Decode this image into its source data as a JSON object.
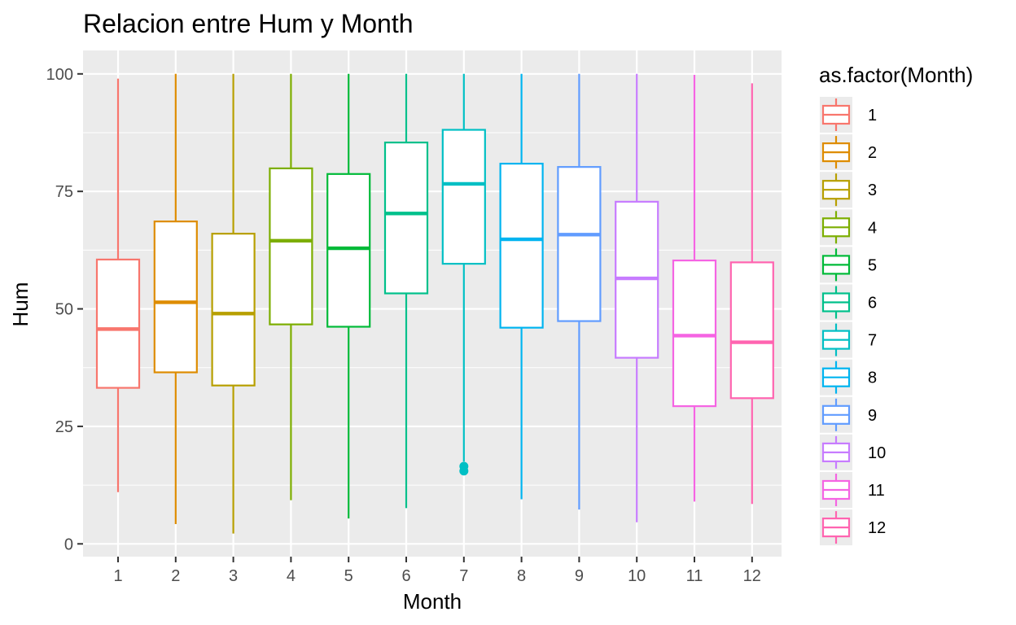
{
  "chart_data": {
    "type": "boxplot",
    "title": "Relacion entre Hum y Month",
    "xlabel": "Month",
    "ylabel": "Hum",
    "ylim": [
      0,
      100
    ],
    "yticks": [
      0,
      25,
      50,
      75,
      100
    ],
    "categories": [
      "1",
      "2",
      "3",
      "4",
      "5",
      "6",
      "7",
      "8",
      "9",
      "10",
      "11",
      "12"
    ],
    "boxes": [
      {
        "min": 11,
        "q1": 33.2,
        "median": 45.7,
        "q3": 60.5,
        "max": 99,
        "outliers": []
      },
      {
        "min": 4.2,
        "q1": 36.5,
        "median": 51.4,
        "q3": 68.6,
        "max": 100,
        "outliers": []
      },
      {
        "min": 2.2,
        "q1": 33.7,
        "median": 49,
        "q3": 66,
        "max": 100,
        "outliers": []
      },
      {
        "min": 9.3,
        "q1": 46.7,
        "median": 64.5,
        "q3": 79.9,
        "max": 100,
        "outliers": []
      },
      {
        "min": 5.4,
        "q1": 46.2,
        "median": 62.9,
        "q3": 78.7,
        "max": 100,
        "outliers": []
      },
      {
        "min": 7.6,
        "q1": 53.3,
        "median": 70.3,
        "q3": 85.4,
        "max": 100,
        "outliers": []
      },
      {
        "min": 17.5,
        "q1": 59.6,
        "median": 76.6,
        "q3": 88.1,
        "max": 100,
        "outliers": [
          16.5,
          15.5
        ]
      },
      {
        "min": 9.5,
        "q1": 46,
        "median": 64.8,
        "q3": 80.9,
        "max": 100,
        "outliers": []
      },
      {
        "min": 7.3,
        "q1": 47.4,
        "median": 65.8,
        "q3": 80.2,
        "max": 100,
        "outliers": []
      },
      {
        "min": 4.6,
        "q1": 39.6,
        "median": 56.5,
        "q3": 72.8,
        "max": 100,
        "outliers": []
      },
      {
        "min": 9,
        "q1": 29.3,
        "median": 44.3,
        "q3": 60.3,
        "max": 99.8,
        "outliers": []
      },
      {
        "min": 8.5,
        "q1": 31,
        "median": 42.9,
        "q3": 59.9,
        "max": 98,
        "outliers": []
      }
    ],
    "colors": [
      "#F8766D",
      "#DE8C00",
      "#B79F00",
      "#7CAE00",
      "#00BA38",
      "#00C08B",
      "#00BFC4",
      "#00B4F0",
      "#619CFF",
      "#C77CFF",
      "#F564E3",
      "#FF64B0"
    ],
    "legend": {
      "title": "as.factor(Month)",
      "entries": [
        "1",
        "2",
        "3",
        "4",
        "5",
        "6",
        "7",
        "8",
        "9",
        "10",
        "11",
        "12"
      ],
      "placement": "right"
    },
    "grid": true,
    "panel_background": "#EBEBEB"
  }
}
